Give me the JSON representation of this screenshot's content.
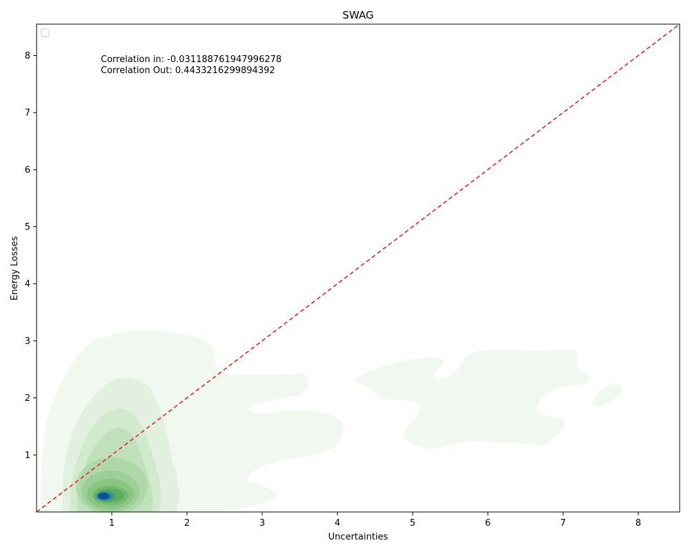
{
  "chart_data": {
    "type": "kde-contour",
    "title": "SWAG",
    "xlabel": "Uncertainties",
    "ylabel": "Energy Losses",
    "xlim": [
      0,
      8.55
    ],
    "ylim": [
      0,
      8.55
    ],
    "x_ticks": [
      "1",
      "2",
      "3",
      "4",
      "5",
      "6",
      "7",
      "8"
    ],
    "y_ticks": [
      "1",
      "2",
      "3",
      "4",
      "5",
      "6",
      "7",
      "8"
    ],
    "legend": {
      "placement": "top-left",
      "entries": []
    },
    "grid": false,
    "reference_line": {
      "from": [
        0,
        0
      ],
      "to": [
        8.55,
        8.55
      ],
      "color": "#e8211e",
      "style": "dashed"
    },
    "annotations": [
      "Correlation in: -0.031188761947996278",
      "Correlation Out: 0.4433216299894392"
    ],
    "density_peak": {
      "x": 0.92,
      "y": 0.27
    },
    "colors": {
      "density_low": "#eaf5e6",
      "density_mid": "#8fce8a",
      "density_high": "#0a50a0"
    }
  }
}
